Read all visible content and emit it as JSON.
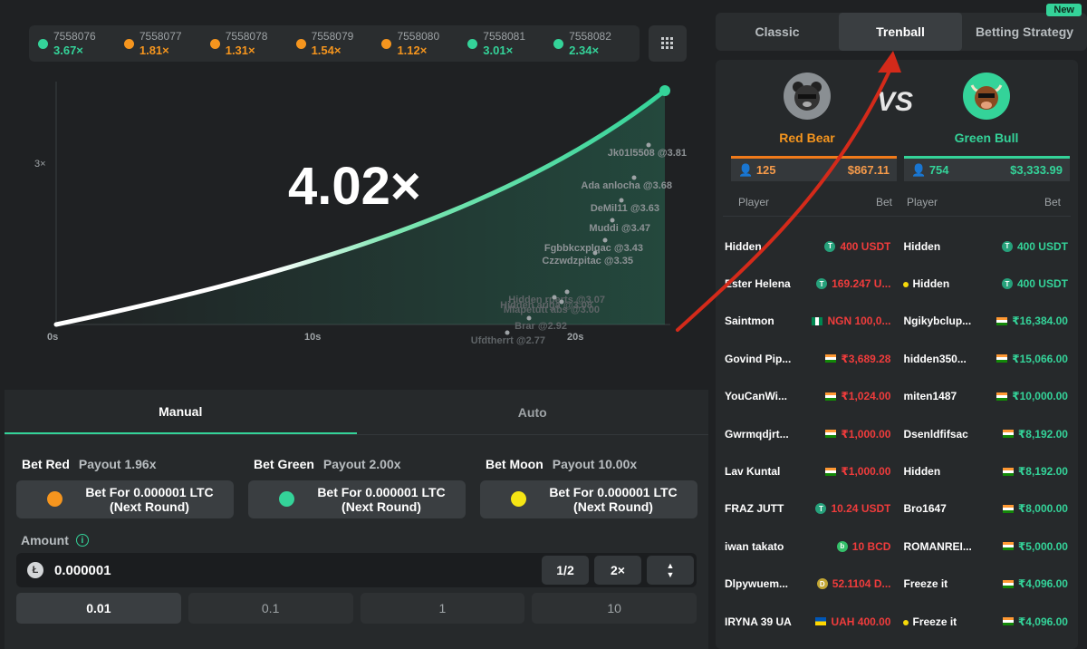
{
  "history": [
    {
      "id": "7558076",
      "value": "3.67×",
      "color": "#34d399"
    },
    {
      "id": "7558077",
      "value": "1.81×",
      "color": "#f5951e"
    },
    {
      "id": "7558078",
      "value": "1.31×",
      "color": "#f5951e"
    },
    {
      "id": "7558079",
      "value": "1.54×",
      "color": "#f5951e"
    },
    {
      "id": "7558080",
      "value": "1.12×",
      "color": "#f5951e"
    },
    {
      "id": "7558081",
      "value": "3.01×",
      "color": "#34d399"
    },
    {
      "id": "7558082",
      "value": "2.34×",
      "color": "#34d399"
    }
  ],
  "game": {
    "multiplier": "4.02×",
    "y_tick": "3×",
    "x_ticks": [
      "0s",
      "10s",
      "20s"
    ],
    "cashouts": [
      {
        "label": "Jk01l5508 @3.81"
      },
      {
        "label": "Ada anlocha @3.68"
      },
      {
        "label": "DeMil11 @3.63"
      },
      {
        "label": "Muddi @3.47"
      },
      {
        "label": "Fgbbkcxplqac @3.43"
      },
      {
        "label": "Czzwdzpitac @3.35"
      },
      {
        "label": "Hidden rperts @3.07"
      },
      {
        "label": "Hidden ariga @3.08"
      },
      {
        "label": "Mlapetutt abs @3.00"
      },
      {
        "label": "Brar @2.92"
      },
      {
        "label": "Ufdtherrt @2.77"
      }
    ]
  },
  "panel": {
    "tabs": [
      "Manual",
      "Auto"
    ],
    "bets": [
      {
        "name": "Bet Red",
        "payout": "Payout 1.96x",
        "label_line1": "Bet For 0.000001 LTC",
        "label_line2": "(Next Round)",
        "color": "#f5951e"
      },
      {
        "name": "Bet Green",
        "payout": "Payout 2.00x",
        "label_line1": "Bet For 0.000001 LTC",
        "label_line2": "(Next Round)",
        "color": "#34d399"
      },
      {
        "name": "Bet Moon",
        "payout": "Payout 10.00x",
        "label_line1": "Bet For 0.000001 LTC",
        "label_line2": "(Next Round)",
        "color": "#f5e514"
      }
    ],
    "amount_label": "Amount",
    "amount_value": "0.000001",
    "half": "1/2",
    "double": "2×",
    "quick": [
      "0.01",
      "0.1",
      "1",
      "10"
    ]
  },
  "modes": {
    "tabs": [
      "Classic",
      "Trenball",
      "Betting Strategy"
    ],
    "new_badge": "New"
  },
  "trenball": {
    "red": {
      "name": "Red Bear",
      "players": "125",
      "total": "$867.11"
    },
    "green": {
      "name": "Green Bull",
      "players": "754",
      "total": "$3,333.99"
    },
    "vs": "VS",
    "headers": {
      "player": "Player",
      "bet": "Bet"
    },
    "rows": [
      {
        "l_name": "Hidden",
        "l_bet": "400 USDT",
        "l_icon": "usdt",
        "r_name": "Hidden",
        "r_bet": "400 USDT",
        "r_icon": "usdt",
        "r_dot": false
      },
      {
        "l_name": "Ester Helena",
        "l_bet": "169.247 U...",
        "l_icon": "usdt",
        "r_name": "Hidden",
        "r_bet": "400 USDT",
        "r_icon": "usdt",
        "r_dot": true
      },
      {
        "l_name": "Saintmon",
        "l_bet": "NGN 100,0...",
        "l_icon": "ng",
        "r_name": "Ngikybclup...",
        "r_bet": "₹16,384.00",
        "r_icon": "in",
        "r_dot": false
      },
      {
        "l_name": "Govind Pip...",
        "l_bet": "₹3,689.28",
        "l_icon": "in",
        "r_name": "hidden350...",
        "r_bet": "₹15,066.00",
        "r_icon": "in",
        "r_dot": false
      },
      {
        "l_name": "YouCanWi...",
        "l_bet": "₹1,024.00",
        "l_icon": "in",
        "r_name": "miten1487",
        "r_bet": "₹10,000.00",
        "r_icon": "in",
        "r_dot": false
      },
      {
        "l_name": "Gwrmqdjrt...",
        "l_bet": "₹1,000.00",
        "l_icon": "in",
        "r_name": "Dsenldfifsac",
        "r_bet": "₹8,192.00",
        "r_icon": "in",
        "r_dot": false
      },
      {
        "l_name": "Lav Kuntal",
        "l_bet": "₹1,000.00",
        "l_icon": "in",
        "r_name": "Hidden",
        "r_bet": "₹8,192.00",
        "r_icon": "in",
        "r_dot": false
      },
      {
        "l_name": "FRAZ JUTT",
        "l_bet": "10.24 USDT",
        "l_icon": "usdt",
        "r_name": "Bro1647",
        "r_bet": "₹8,000.00",
        "r_icon": "in",
        "r_dot": false
      },
      {
        "l_name": "iwan takato",
        "l_bet": "10 BCD",
        "l_icon": "bcd",
        "r_name": "ROMANREI...",
        "r_bet": "₹5,000.00",
        "r_icon": "in",
        "r_dot": false
      },
      {
        "l_name": "Dlpywuem...",
        "l_bet": "52.1104 D...",
        "l_icon": "doge",
        "r_name": "Freeze it",
        "r_bet": "₹4,096.00",
        "r_icon": "in",
        "r_dot": false
      },
      {
        "l_name": "IRYNA 39 UA",
        "l_bet": "UAH 400.00",
        "l_icon": "ua",
        "r_name": "Freeze it",
        "r_bet": "₹4,096.00",
        "r_icon": "in",
        "r_dot": true
      }
    ]
  },
  "colors": {
    "accent_green": "#34d399",
    "accent_orange": "#f5951e",
    "red_text": "#f03c3c",
    "annotation_arrow": "#d42a1a"
  }
}
